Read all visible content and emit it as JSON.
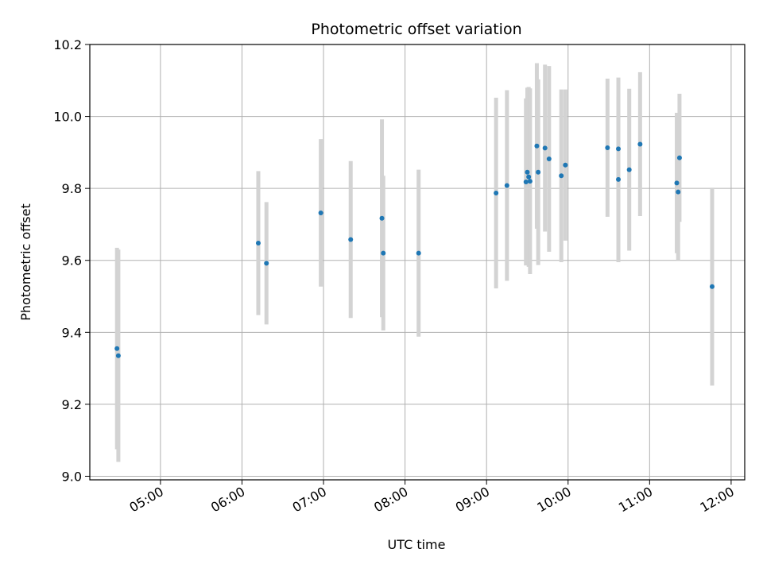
{
  "chart_data": {
    "type": "scatter",
    "title": "Photometric offset variation",
    "xlabel": "UTC time",
    "ylabel": "Photometric offset",
    "x_ticks": [
      "05:00",
      "06:00",
      "07:00",
      "08:00",
      "09:00",
      "10:00",
      "11:00",
      "12:00"
    ],
    "y_ticks": [
      "9.0",
      "9.2",
      "9.4",
      "9.6",
      "9.8",
      "10.0",
      "10.2"
    ],
    "xlim": [
      "04:08",
      "12:10"
    ],
    "ylim": [
      8.99,
      10.2
    ],
    "grid": true,
    "errorbar_color": "#d3d3d3",
    "point_color": "#1f77b4",
    "points": [
      {
        "t": "04:28",
        "y": 9.355,
        "err": 0.28
      },
      {
        "t": "04:29",
        "y": 9.335,
        "err": 0.295
      },
      {
        "t": "06:12",
        "y": 9.648,
        "err": 0.2
      },
      {
        "t": "06:18",
        "y": 9.592,
        "err": 0.17
      },
      {
        "t": "06:58",
        "y": 9.732,
        "err": 0.205
      },
      {
        "t": "07:20",
        "y": 9.658,
        "err": 0.218
      },
      {
        "t": "07:43",
        "y": 9.717,
        "err": 0.275
      },
      {
        "t": "07:44",
        "y": 9.62,
        "err": 0.215
      },
      {
        "t": "08:10",
        "y": 9.62,
        "err": 0.232
      },
      {
        "t": "09:07",
        "y": 9.787,
        "err": 0.265
      },
      {
        "t": "09:15",
        "y": 9.808,
        "err": 0.265
      },
      {
        "t": "09:29",
        "y": 9.818,
        "err": 0.232
      },
      {
        "t": "09:30",
        "y": 9.845,
        "err": 0.235
      },
      {
        "t": "09:31",
        "y": 9.832,
        "err": 0.25
      },
      {
        "t": "09:32",
        "y": 9.82,
        "err": 0.258
      },
      {
        "t": "09:37",
        "y": 9.918,
        "err": 0.23
      },
      {
        "t": "09:38",
        "y": 9.845,
        "err": 0.258
      },
      {
        "t": "09:43",
        "y": 9.912,
        "err": 0.232
      },
      {
        "t": "09:46",
        "y": 9.882,
        "err": 0.258
      },
      {
        "t": "09:55",
        "y": 9.835,
        "err": 0.24
      },
      {
        "t": "09:58",
        "y": 9.865,
        "err": 0.21
      },
      {
        "t": "10:29",
        "y": 9.913,
        "err": 0.192
      },
      {
        "t": "10:37",
        "y": 9.825,
        "err": 0.23
      },
      {
        "t": "10:37",
        "y": 9.91,
        "err": 0.198
      },
      {
        "t": "10:45",
        "y": 9.852,
        "err": 0.225
      },
      {
        "t": "10:53",
        "y": 9.923,
        "err": 0.2
      },
      {
        "t": "11:20",
        "y": 9.815,
        "err": 0.195
      },
      {
        "t": "11:21",
        "y": 9.79,
        "err": 0.19
      },
      {
        "t": "11:22",
        "y": 9.885,
        "err": 0.178
      },
      {
        "t": "11:46",
        "y": 9.527,
        "err": 0.275
      }
    ]
  }
}
